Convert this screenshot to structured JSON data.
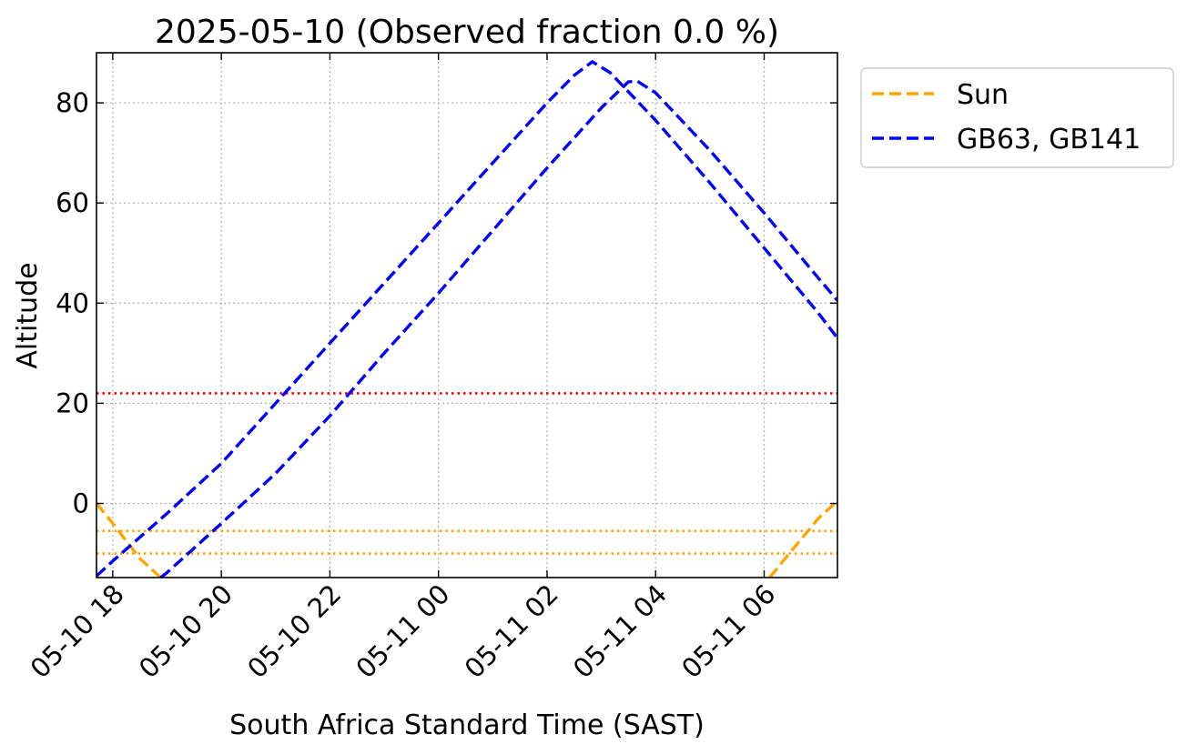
{
  "chart_data": {
    "type": "line",
    "title": "2025-05-10 (Observed fraction 0.0 %)",
    "xlabel": "South Africa Standard Time (SAST)",
    "ylabel": "Altitude",
    "xlim": [
      "2025-05-10 17:42",
      "2025-05-11 07:21"
    ],
    "ylim": [
      -14.8,
      90
    ],
    "x_ticks": [
      "05-10 18",
      "05-10 20",
      "05-10 22",
      "05-11 00",
      "05-11 02",
      "05-11 04",
      "05-11 06"
    ],
    "y_ticks": [
      "0",
      "20",
      "40",
      "60",
      "80"
    ],
    "grid": true,
    "legend_position": "outside-top-right",
    "series": [
      {
        "name": "Sun",
        "color": "#ffa500",
        "style": "dashed",
        "segments": [
          [
            [
              "2025-05-10 17:42",
              0
            ],
            [
              "2025-05-10 18:00",
              -4
            ],
            [
              "2025-05-10 18:30",
              -11
            ],
            [
              "2025-05-10 18:53",
              -14.8
            ]
          ],
          [
            [
              "2025-05-11 06:06",
              -14.8
            ],
            [
              "2025-05-11 06:30",
              -9.5
            ],
            [
              "2025-05-11 07:00",
              -3
            ],
            [
              "2025-05-11 07:21",
              0.5
            ]
          ]
        ]
      },
      {
        "name": "GB63, GB141",
        "color": "#0000ff",
        "style": "dashed",
        "segments": [
          [
            [
              "2025-05-10 17:42",
              -14.5
            ],
            [
              "2025-05-10 18:00",
              -11.5
            ],
            [
              "2025-05-10 19:00",
              -2
            ],
            [
              "2025-05-10 20:00",
              8
            ],
            [
              "2025-05-10 21:00",
              20
            ],
            [
              "2025-05-10 22:00",
              32
            ],
            [
              "2025-05-10 23:00",
              44
            ],
            [
              "2025-05-11 00:00",
              56
            ],
            [
              "2025-05-11 01:00",
              68
            ],
            [
              "2025-05-11 02:00",
              80
            ],
            [
              "2025-05-11 02:30",
              85.5
            ],
            [
              "2025-05-11 02:50",
              88.2
            ],
            [
              "2025-05-11 03:10",
              86
            ],
            [
              "2025-05-11 04:00",
              76.5
            ],
            [
              "2025-05-11 05:00",
              64
            ],
            [
              "2025-05-11 06:00",
              51
            ],
            [
              "2025-05-11 07:00",
              38
            ],
            [
              "2025-05-11 07:21",
              33
            ]
          ],
          [
            [
              "2025-05-10 18:53",
              -14.8
            ],
            [
              "2025-05-10 19:00",
              -13.8
            ],
            [
              "2025-05-10 20:00",
              -4
            ],
            [
              "2025-05-10 21:00",
              6
            ],
            [
              "2025-05-10 22:00",
              17.5
            ],
            [
              "2025-05-10 23:00",
              30
            ],
            [
              "2025-05-11 00:00",
              42
            ],
            [
              "2025-05-11 01:00",
              54.5
            ],
            [
              "2025-05-11 02:00",
              67
            ],
            [
              "2025-05-11 03:00",
              79
            ],
            [
              "2025-05-11 03:30",
              84.2
            ],
            [
              "2025-05-11 03:40",
              84.3
            ],
            [
              "2025-05-11 04:00",
              82
            ],
            [
              "2025-05-11 05:00",
              70.5
            ],
            [
              "2025-05-11 06:00",
              58
            ],
            [
              "2025-05-11 07:00",
              45
            ],
            [
              "2025-05-11 07:21",
              40.5
            ]
          ]
        ]
      }
    ],
    "reference_lines": [
      {
        "y": 22,
        "color": "#ff0000",
        "style": "dotted"
      },
      {
        "y": -5.5,
        "color": "#ffa500",
        "style": "dotted"
      },
      {
        "y": -10,
        "color": "#ffa500",
        "style": "dotted"
      }
    ]
  }
}
